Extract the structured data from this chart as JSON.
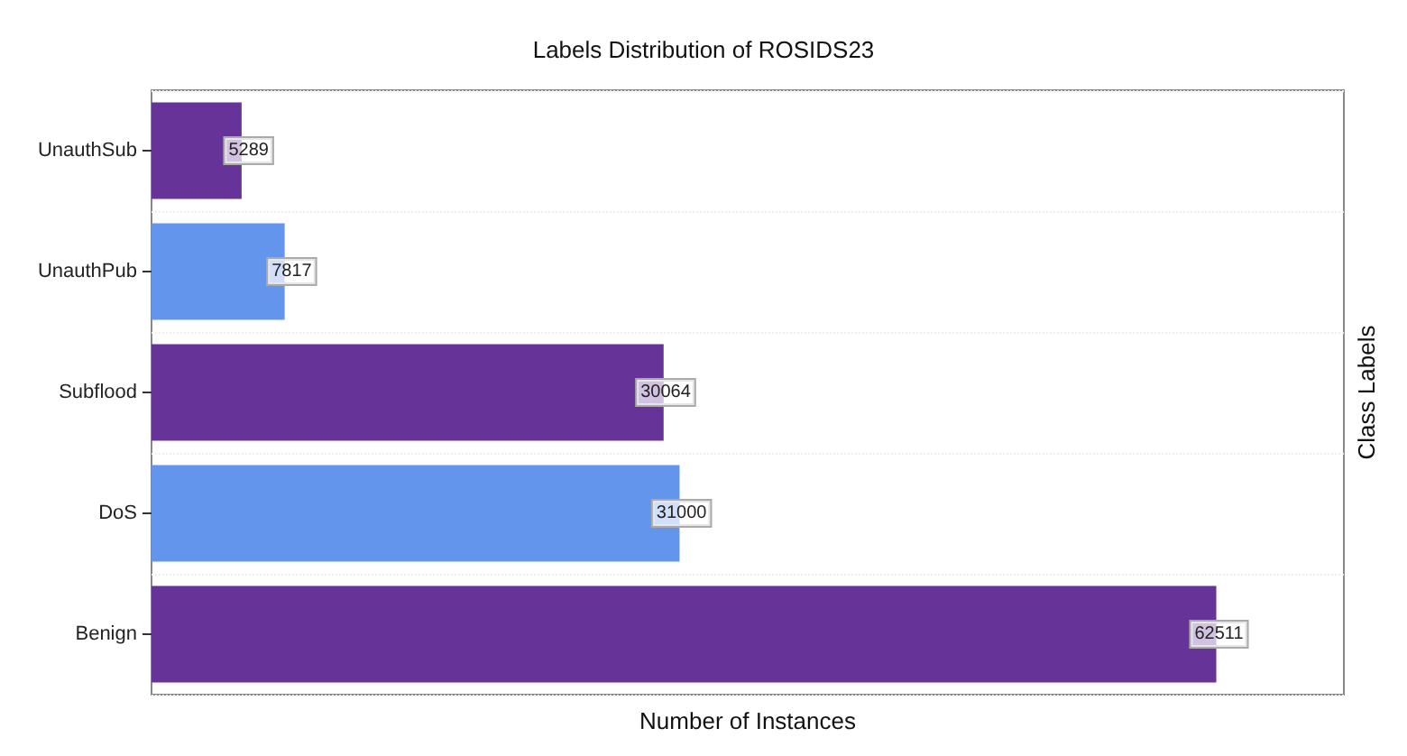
{
  "chart_data": {
    "type": "bar",
    "orientation": "horizontal",
    "title": "Labels Distribution of ROSIDS23",
    "xlabel": "Number of Instances",
    "annotations": [
      "Class Labels"
    ],
    "categories": [
      "UnauthSub",
      "UnauthPub",
      "Subflood",
      "DoS",
      "Benign"
    ],
    "values": [
      5289,
      7817,
      30064,
      31000,
      62511
    ],
    "colors": [
      "#663399",
      "#6495ed",
      "#663399",
      "#6495ed",
      "#663399"
    ],
    "data_labels": true,
    "grid": "y",
    "tick_labels": "y"
  }
}
